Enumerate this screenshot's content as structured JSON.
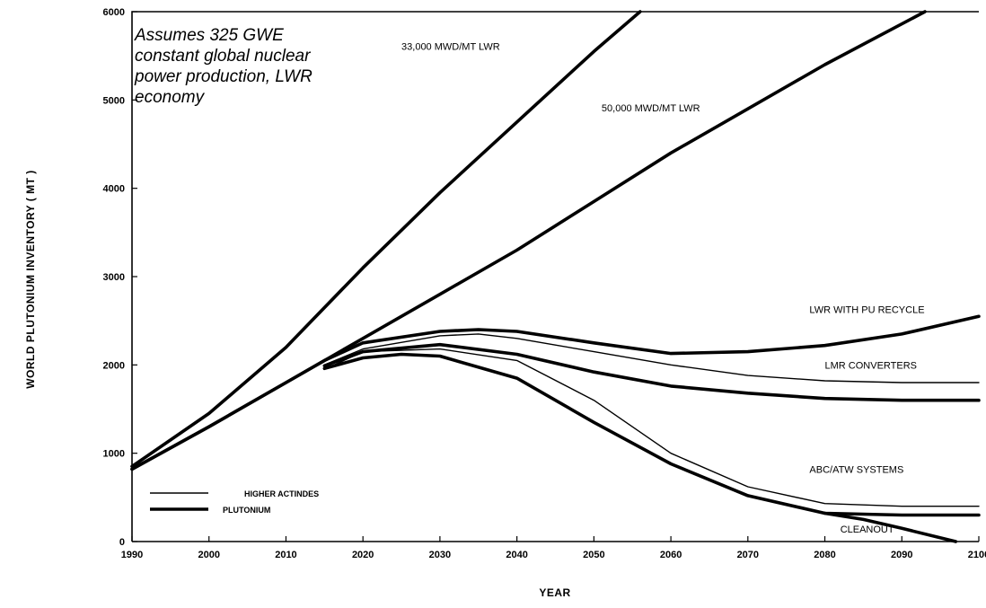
{
  "chart_data": {
    "type": "line",
    "title": "",
    "xlabel": "YEAR",
    "ylabel": "WORLD PLUTONIUM INVENTORY ( MT )",
    "xlim": [
      1990,
      2100
    ],
    "ylim": [
      0,
      6000
    ],
    "x_ticks": [
      1990,
      2000,
      2010,
      2020,
      2030,
      2040,
      2050,
      2060,
      2070,
      2080,
      2090,
      2100
    ],
    "x_tick_labels": [
      "1990",
      "2000",
      "2010",
      "2020",
      "2030",
      "2040",
      "2050",
      "2060",
      "2070",
      "2080",
      "2090",
      "2100"
    ],
    "y_ticks": [
      0,
      1000,
      2000,
      3000,
      4000,
      5000,
      6000
    ],
    "y_tick_labels": [
      "0",
      "1000",
      "2000",
      "3000",
      "4000",
      "5000",
      "6000"
    ],
    "grid": false,
    "annotation": [
      "Assumes 325 GWE",
      "constant global nuclear",
      "power production, LWR",
      "economy"
    ],
    "legend": {
      "placement": "bottom-left",
      "entries": [
        {
          "label": "HIGHER ACTINDES",
          "style": "thin"
        },
        {
          "label": "PLUTONIUM",
          "style": "thick"
        }
      ]
    },
    "series": [
      {
        "name": "33,000 MWD/MT LWR",
        "style": "thick",
        "x": [
          1990,
          2000,
          2010,
          2020,
          2030,
          2040,
          2050,
          2056
        ],
        "y": [
          850,
          1450,
          2200,
          3100,
          3950,
          4750,
          5550,
          6000
        ]
      },
      {
        "name": "50,000 MWD/MT LWR",
        "style": "thick",
        "x": [
          1990,
          2000,
          2010,
          2020,
          2030,
          2040,
          2050,
          2060,
          2070,
          2080,
          2093
        ],
        "y": [
          820,
          1300,
          1800,
          2300,
          2800,
          3300,
          3850,
          4400,
          4900,
          5400,
          6000
        ]
      },
      {
        "name": "LWR WITH PU RECYCLE",
        "style": "thick",
        "x": [
          1990,
          2000,
          2010,
          2015,
          2020,
          2030,
          2035,
          2040,
          2050,
          2060,
          2070,
          2080,
          2090,
          2100
        ],
        "y": [
          820,
          1300,
          1800,
          2050,
          2250,
          2380,
          2400,
          2380,
          2250,
          2130,
          2150,
          2220,
          2350,
          2550
        ]
      },
      {
        "name": "LMR CONVERTERS",
        "style": "thin",
        "x": [
          2015,
          2020,
          2030,
          2035,
          2040,
          2050,
          2060,
          2070,
          2080,
          2090,
          2100
        ],
        "y": [
          2000,
          2180,
          2330,
          2350,
          2300,
          2150,
          2000,
          1880,
          1820,
          1800,
          1800
        ]
      },
      {
        "name": "LMR CONVERTERS",
        "style": "thick",
        "x": [
          2015,
          2020,
          2030,
          2040,
          2050,
          2060,
          2070,
          2080,
          2090,
          2100
        ],
        "y": [
          1990,
          2150,
          2230,
          2120,
          1920,
          1760,
          1680,
          1620,
          1600,
          1600
        ]
      },
      {
        "name": "ABC/ATW SYSTEMS",
        "style": "thin",
        "x": [
          2015,
          2020,
          2030,
          2040,
          2050,
          2060,
          2070,
          2080,
          2090,
          2100
        ],
        "y": [
          1950,
          2150,
          2180,
          2050,
          1600,
          1000,
          620,
          430,
          400,
          400
        ]
      },
      {
        "name": "ABC/ATW SYSTEMS",
        "style": "thick",
        "x": [
          2015,
          2020,
          2025,
          2030,
          2040,
          2050,
          2060,
          2070,
          2080,
          2090,
          2100
        ],
        "y": [
          1960,
          2080,
          2120,
          2100,
          1850,
          1350,
          880,
          520,
          320,
          300,
          300
        ]
      },
      {
        "name": "CLEANOUT",
        "style": "thick",
        "x": [
          2080,
          2085,
          2090,
          2097
        ],
        "y": [
          320,
          250,
          150,
          0
        ]
      }
    ],
    "series_labels": [
      {
        "text": "33,000 MWD/MT LWR",
        "x": 2025,
        "y": 5570
      },
      {
        "text": "50,000 MWD/MT LWR",
        "x": 2051,
        "y": 4870
      },
      {
        "text": "LWR WITH PU RECYCLE",
        "x": 2078,
        "y": 2590
      },
      {
        "text": "LMR CONVERTERS",
        "x": 2080,
        "y": 1960
      },
      {
        "text": "ABC/ATW SYSTEMS",
        "x": 2078,
        "y": 780
      },
      {
        "text": "CLEANOUT",
        "x": 2082,
        "y": 100
      }
    ]
  }
}
